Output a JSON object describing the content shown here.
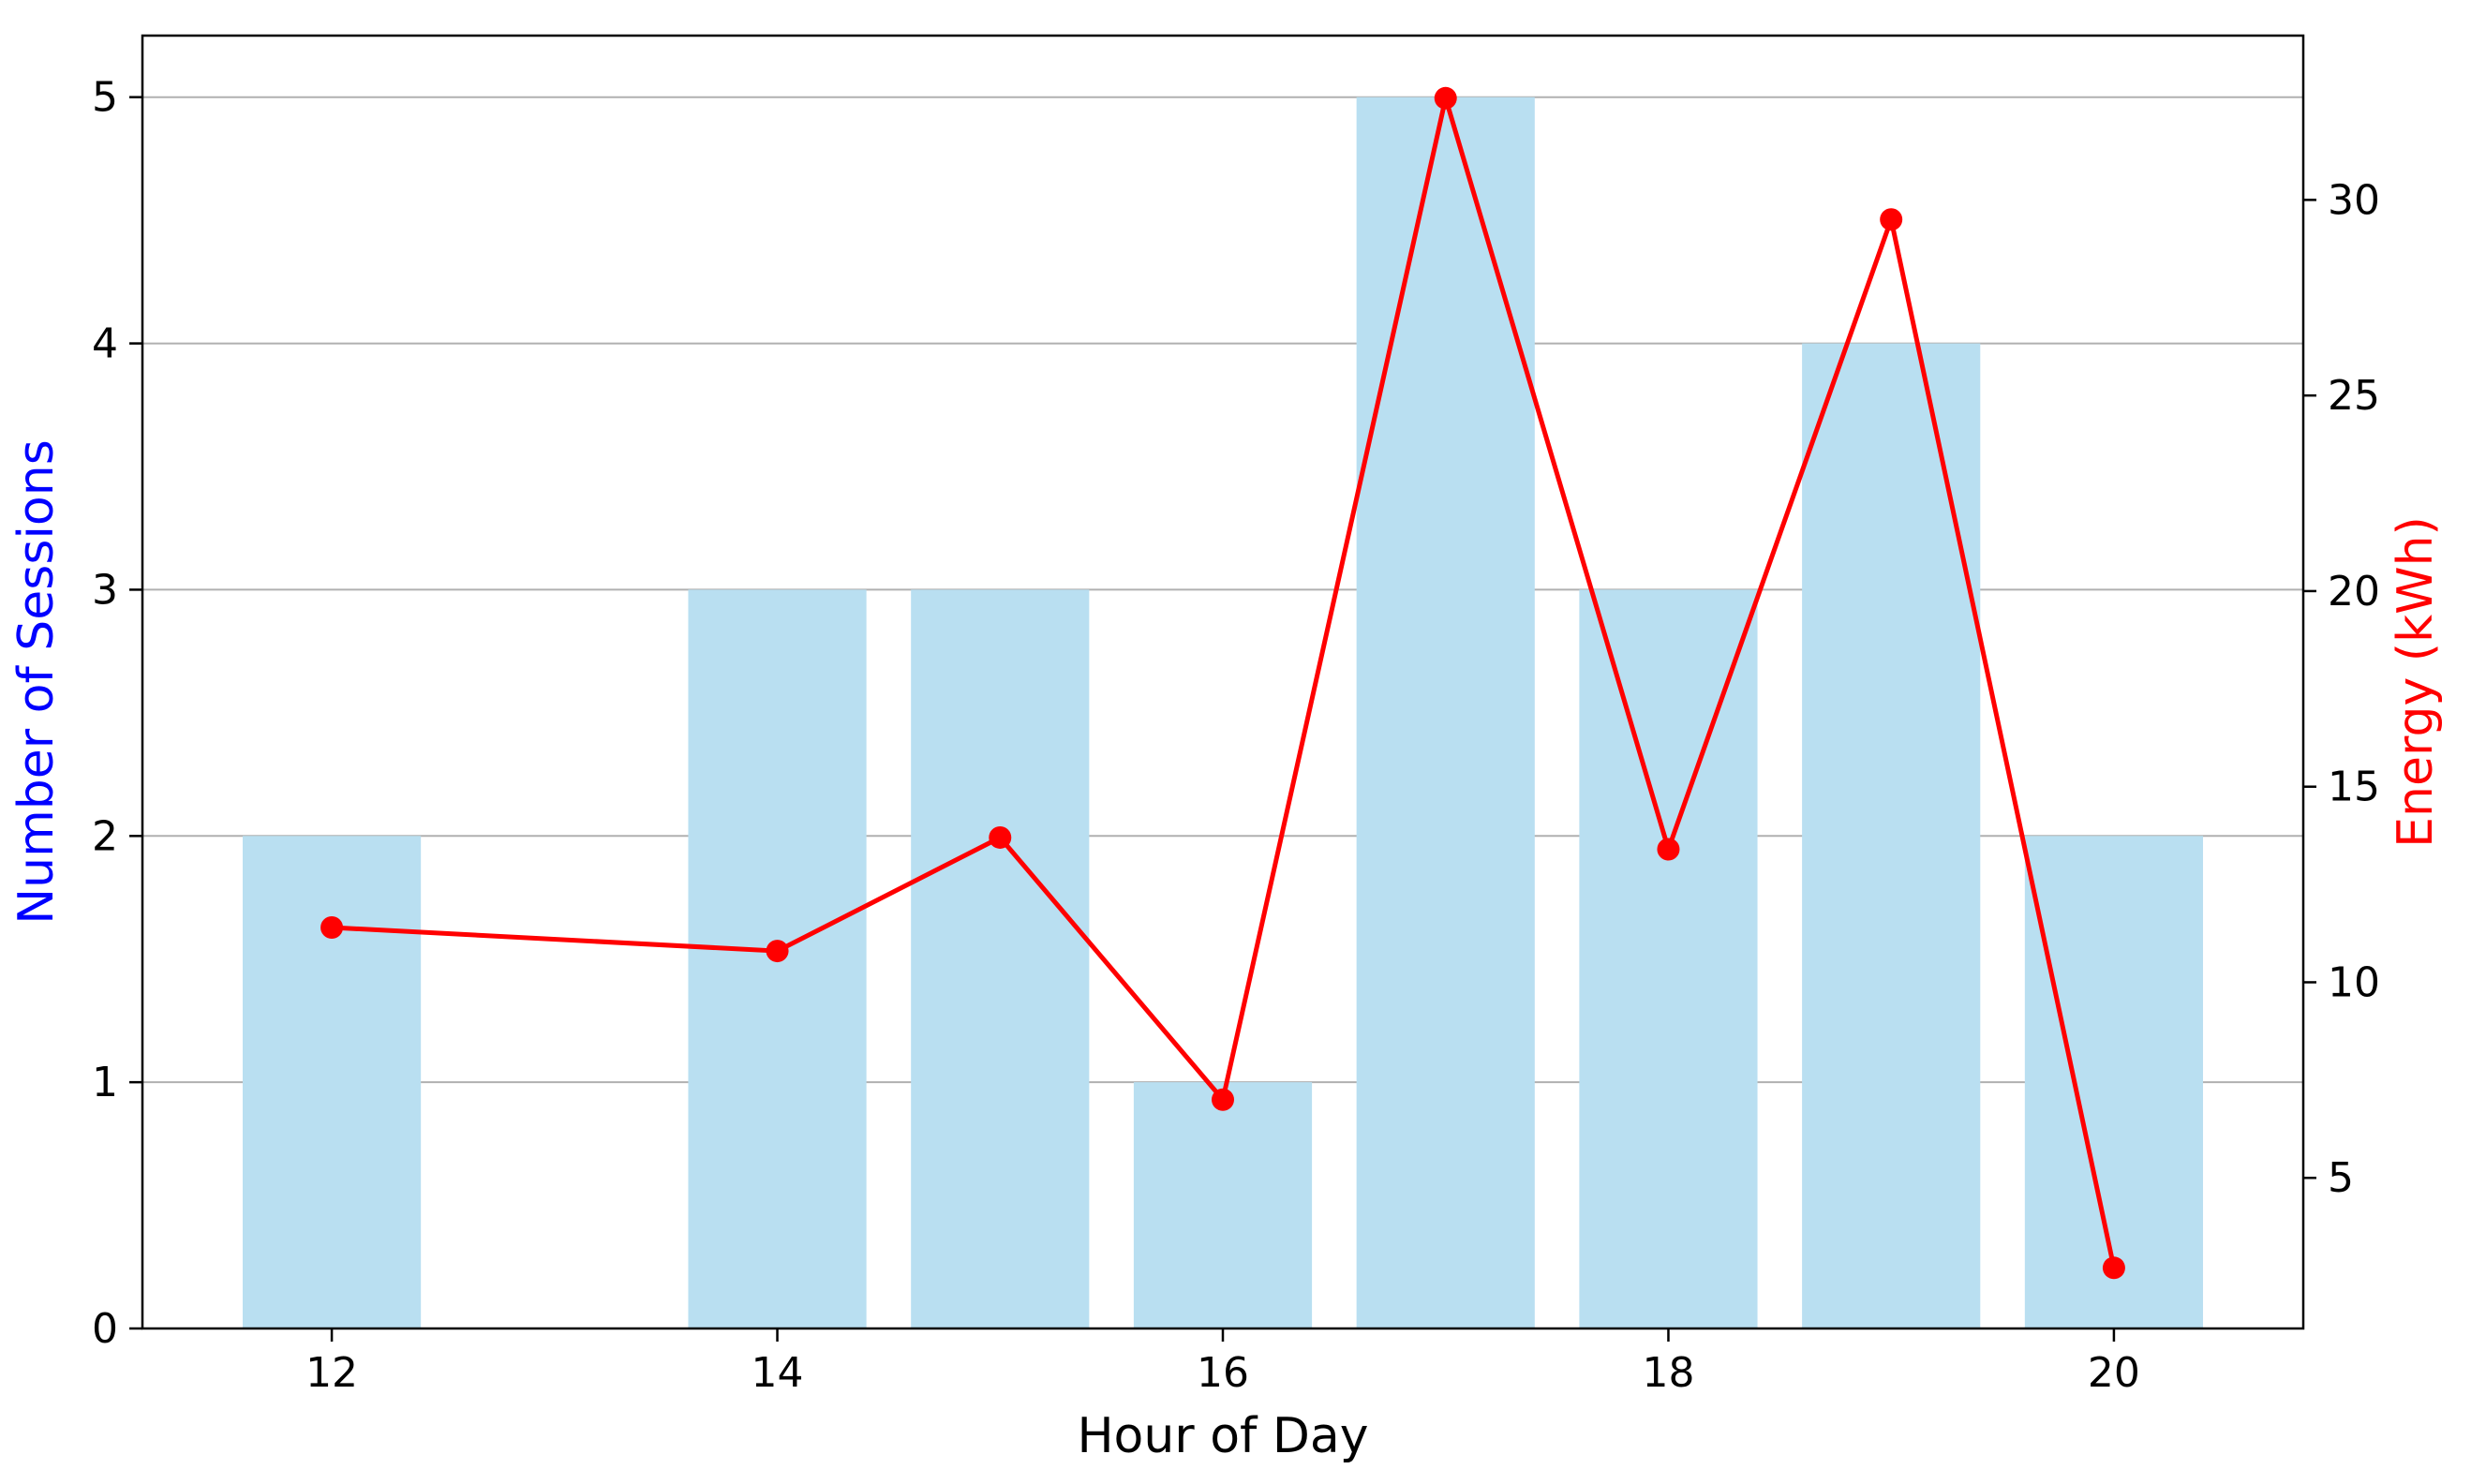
{
  "chart_data": {
    "type": "bar",
    "title": "",
    "xlabel": "Hour of Day",
    "ylabel_left": "Number of Sessions",
    "ylabel_right": "Energy (kWh)",
    "x": [
      12,
      14,
      15,
      16,
      17,
      18,
      19,
      20
    ],
    "xlim": [
      11.15,
      20.85
    ],
    "xticks": [
      12,
      14,
      16,
      18,
      20
    ],
    "ylim_left": [
      0,
      5.25
    ],
    "yticks_left": [
      0,
      1,
      2,
      3,
      4,
      5
    ],
    "ylim_right": [
      1.15,
      34.2
    ],
    "yticks_right": [
      5,
      10,
      15,
      20,
      25,
      30
    ],
    "grid": "horizontal, left axis",
    "series": [
      {
        "type": "bar",
        "axis": "left",
        "values": [
          2,
          3,
          3,
          1,
          5,
          3,
          4,
          2
        ]
      },
      {
        "type": "line",
        "axis": "right",
        "markers": true,
        "values": [
          11.4,
          10.8,
          13.7,
          7.0,
          32.6,
          13.4,
          29.5,
          2.7
        ]
      }
    ],
    "colors": {
      "bars": "#b9dff1",
      "line": "#ff0000",
      "left_label": "#0000ff",
      "right_label": "#ff0000",
      "grid": "#b0b0b0",
      "axes": "#000000"
    }
  }
}
